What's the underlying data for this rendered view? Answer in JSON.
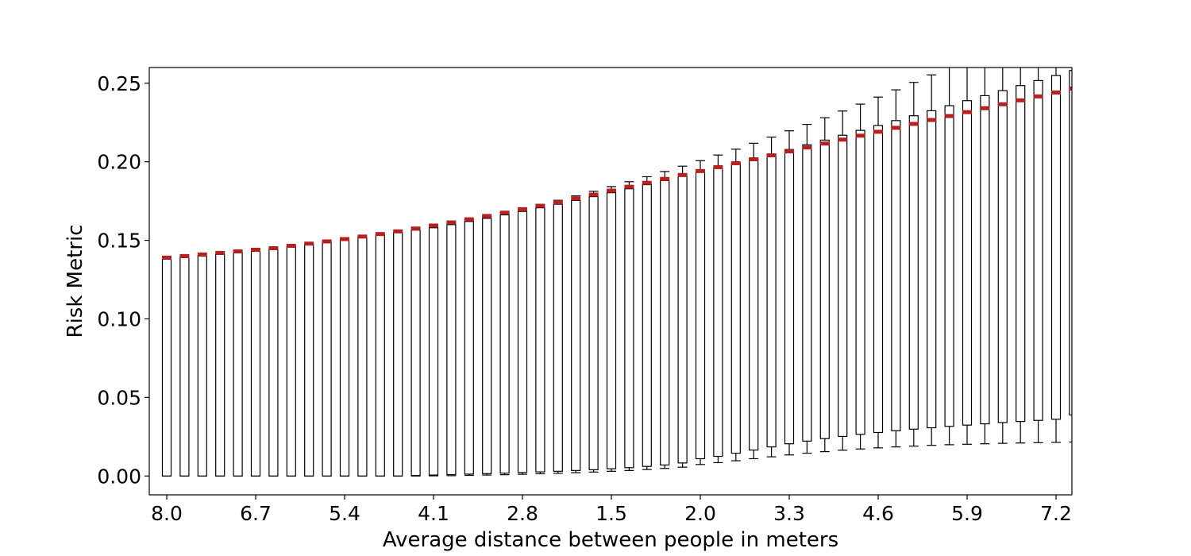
{
  "colors": {
    "box_stroke": "#000000",
    "median": "#b22222",
    "background": "#ffffff"
  },
  "chart_data": {
    "type": "boxplot",
    "title": "",
    "xlabel": "Average distance between people in meters",
    "ylabel": "Risk Metric",
    "ylim": [
      -0.012,
      0.26
    ],
    "yticks": [
      0.0,
      0.05,
      0.1,
      0.15,
      0.2,
      0.25
    ],
    "ytick_labels": [
      "0.00",
      "0.05",
      "0.10",
      "0.15",
      "0.20",
      "0.25"
    ],
    "grid": false,
    "legend": "none",
    "box_count": 52,
    "xtick_labels": [
      {
        "box": 1,
        "label": "8.0"
      },
      {
        "box": 6,
        "label": "6.7"
      },
      {
        "box": 11,
        "label": "5.4"
      },
      {
        "box": 16,
        "label": "4.1"
      },
      {
        "box": 21,
        "label": "2.8"
      },
      {
        "box": 26,
        "label": "1.5"
      },
      {
        "box": 31,
        "label": "2.0"
      },
      {
        "box": 36,
        "label": "3.3"
      },
      {
        "box": 41,
        "label": "4.6"
      },
      {
        "box": 46,
        "label": "5.9"
      },
      {
        "box": 51,
        "label": "7.2"
      }
    ],
    "boxes": {
      "whislo": [
        0.0,
        0.0,
        0.0,
        0.0,
        0.0,
        0.0,
        0.0,
        0.0,
        0.0,
        0.0,
        0.0,
        0.0,
        0.0,
        0.0,
        0.0,
        0.0001,
        0.0002,
        0.0004,
        0.0006,
        0.0008,
        0.0011,
        0.0014,
        0.0017,
        0.0021,
        0.0025,
        0.003,
        0.0035,
        0.0041,
        0.0048,
        0.0056,
        0.0073,
        0.0085,
        0.0097,
        0.011,
        0.0122,
        0.0134,
        0.0145,
        0.0155,
        0.0164,
        0.0172,
        0.0179,
        0.0185,
        0.019,
        0.0195,
        0.0199,
        0.0202,
        0.0205,
        0.0208,
        0.021,
        0.0212,
        0.0214,
        0.0216
      ],
      "q1": [
        0.0,
        0.0,
        0.0,
        0.0,
        0.0,
        0.0,
        0.0,
        0.0,
        0.0,
        0.0,
        0.0,
        0.0,
        0.0,
        0.0,
        0.0003,
        0.0006,
        0.0009,
        0.0012,
        0.0015,
        0.0018,
        0.0022,
        0.0026,
        0.003,
        0.0035,
        0.004,
        0.0046,
        0.0053,
        0.0061,
        0.007,
        0.0083,
        0.011,
        0.0125,
        0.0145,
        0.0165,
        0.0185,
        0.0205,
        0.0222,
        0.0238,
        0.0252,
        0.0265,
        0.0277,
        0.0288,
        0.0298,
        0.0307,
        0.0316,
        0.0324,
        0.0332,
        0.034,
        0.0347,
        0.0354,
        0.0361,
        0.0388
      ],
      "med": [
        0.139,
        0.14,
        0.141,
        0.142,
        0.143,
        0.144,
        0.145,
        0.1465,
        0.1479,
        0.1493,
        0.1508,
        0.1524,
        0.154,
        0.1557,
        0.1575,
        0.1594,
        0.1614,
        0.1634,
        0.1655,
        0.1676,
        0.1698,
        0.172,
        0.1743,
        0.1767,
        0.1791,
        0.1816,
        0.1841,
        0.1866,
        0.1891,
        0.1916,
        0.1941,
        0.1966,
        0.1991,
        0.2016,
        0.2041,
        0.2066,
        0.2091,
        0.2116,
        0.2141,
        0.2166,
        0.2191,
        0.2216,
        0.2241,
        0.2266,
        0.2291,
        0.2316,
        0.2341,
        0.2366,
        0.2391,
        0.2416,
        0.2441,
        0.2466
      ],
      "q3": [
        0.138,
        0.139,
        0.14,
        0.141,
        0.142,
        0.143,
        0.1445,
        0.146,
        0.1475,
        0.149,
        0.1505,
        0.152,
        0.1535,
        0.155,
        0.1565,
        0.158,
        0.16,
        0.162,
        0.164,
        0.1662,
        0.1684,
        0.1707,
        0.173,
        0.1754,
        0.1778,
        0.1803,
        0.1828,
        0.1854,
        0.188,
        0.1907,
        0.1934,
        0.1962,
        0.199,
        0.2019,
        0.2048,
        0.2078,
        0.2108,
        0.2138,
        0.2169,
        0.22,
        0.2231,
        0.2262,
        0.2293,
        0.2325,
        0.2357,
        0.2389,
        0.2421,
        0.2453,
        0.2485,
        0.2517,
        0.2549,
        0.2581
      ],
      "whishi": [
        0.138,
        0.139,
        0.14,
        0.141,
        0.142,
        0.143,
        0.1445,
        0.146,
        0.1475,
        0.149,
        0.1505,
        0.152,
        0.1535,
        0.155,
        0.1565,
        0.158,
        0.1605,
        0.1628,
        0.1652,
        0.1677,
        0.1702,
        0.1728,
        0.1755,
        0.1783,
        0.1812,
        0.1842,
        0.1873,
        0.1905,
        0.1938,
        0.1972,
        0.2007,
        0.2043,
        0.208,
        0.2118,
        0.2157,
        0.2197,
        0.2238,
        0.228,
        0.2323,
        0.2367,
        0.2412,
        0.2458,
        0.2505,
        0.2553,
        0.2602,
        0.2652,
        0.2703,
        0.2755,
        0.2808,
        0.2862,
        0.2917,
        0.2973
      ]
    }
  }
}
